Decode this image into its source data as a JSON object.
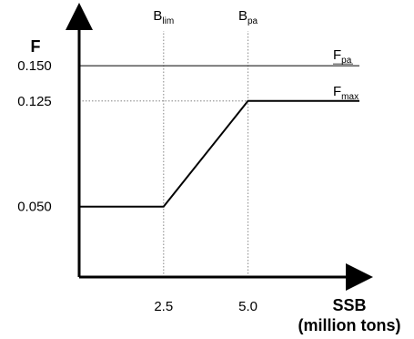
{
  "chart_data": {
    "type": "line",
    "ylabel": "F",
    "xlabel": "SSB",
    "xlabel_unit": "(million tons)",
    "xlim": [
      0,
      8.3
    ],
    "ylim": [
      0,
      0.185
    ],
    "x_ticks": [
      {
        "value": 2.5,
        "label": "2.5"
      },
      {
        "value": 5.0,
        "label": "5.0"
      }
    ],
    "y_ticks": [
      {
        "value": 0.15,
        "label": "0.150"
      },
      {
        "value": 0.125,
        "label": "0.125"
      },
      {
        "value": 0.05,
        "label": "0.050"
      }
    ],
    "reference_lines": [
      {
        "orientation": "vertical",
        "value": 2.5,
        "label": "B",
        "sub": "lim",
        "style": "dotted"
      },
      {
        "orientation": "vertical",
        "value": 5.0,
        "label": "B",
        "sub": "pa",
        "style": "dotted"
      },
      {
        "orientation": "horizontal",
        "value": 0.15,
        "label": "F",
        "sub": "pa",
        "style": "thin"
      },
      {
        "orientation": "horizontal",
        "value": 0.125,
        "label": "F",
        "sub": "max",
        "style": "dotted"
      }
    ],
    "series": [
      {
        "x": [
          0.0,
          2.5,
          5.0,
          8.3
        ],
        "y": [
          0.05,
          0.05,
          0.125,
          0.125
        ]
      }
    ],
    "grid": false,
    "legend": "none"
  }
}
